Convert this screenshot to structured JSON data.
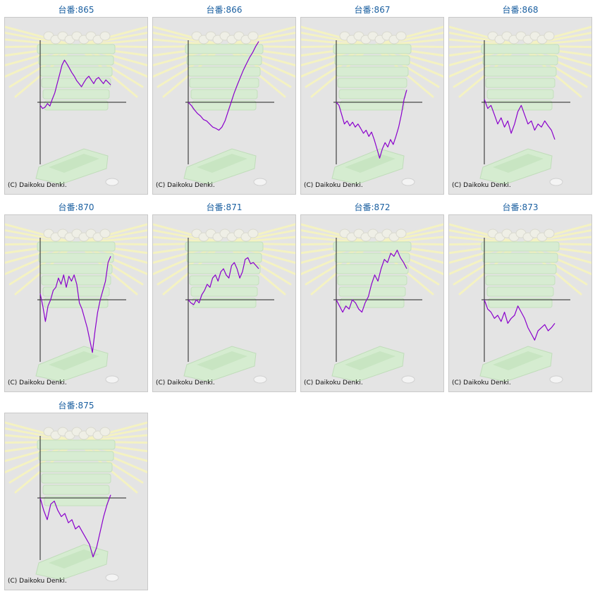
{
  "credit": "(C) Daikoku Denki.",
  "colors": {
    "title": "#1a5fa0",
    "line": "#8a00cc",
    "axis": "#222222",
    "background": "#e4e4e4"
  },
  "chart_data": [
    {
      "type": "line",
      "title": "台番:865",
      "ylim": [
        -1,
        1
      ],
      "y": [
        -0.05,
        -0.1,
        -0.08,
        -0.02,
        -0.06,
        0.05,
        0.15,
        0.3,
        0.45,
        0.6,
        0.68,
        0.62,
        0.55,
        0.48,
        0.42,
        0.35,
        0.3,
        0.25,
        0.32,
        0.38,
        0.42,
        0.36,
        0.3,
        0.37,
        0.4,
        0.35,
        0.3,
        0.36,
        0.32,
        0.28
      ]
    },
    {
      "type": "line",
      "title": "台番:866",
      "ylim": [
        -1,
        1
      ],
      "y": [
        0.0,
        -0.05,
        -0.12,
        -0.18,
        -0.22,
        -0.28,
        -0.3,
        -0.35,
        -0.4,
        -0.42,
        -0.45,
        -0.4,
        -0.3,
        -0.15,
        0.0,
        0.15,
        0.28,
        0.4,
        0.52,
        0.62,
        0.72,
        0.8,
        0.9,
        0.98
      ]
    },
    {
      "type": "line",
      "title": "台番:867",
      "ylim": [
        -1,
        1
      ],
      "y": [
        0.0,
        -0.05,
        -0.2,
        -0.35,
        -0.3,
        -0.38,
        -0.32,
        -0.4,
        -0.35,
        -0.42,
        -0.5,
        -0.45,
        -0.55,
        -0.48,
        -0.6,
        -0.75,
        -0.9,
        -0.75,
        -0.65,
        -0.72,
        -0.6,
        -0.68,
        -0.55,
        -0.4,
        -0.2,
        0.05,
        0.2
      ]
    },
    {
      "type": "line",
      "title": "台番:868",
      "ylim": [
        -1,
        1
      ],
      "y": [
        0.05,
        -0.1,
        -0.05,
        -0.2,
        -0.35,
        -0.25,
        -0.4,
        -0.3,
        -0.5,
        -0.35,
        -0.15,
        -0.05,
        -0.2,
        -0.35,
        -0.3,
        -0.45,
        -0.35,
        -0.4,
        -0.3,
        -0.38,
        -0.45,
        -0.6
      ]
    },
    {
      "type": "line",
      "title": "台番:870",
      "ylim": [
        -1,
        1
      ],
      "y": [
        0.1,
        -0.1,
        -0.35,
        -0.1,
        0.0,
        0.15,
        0.2,
        0.35,
        0.25,
        0.4,
        0.2,
        0.38,
        0.3,
        0.4,
        0.25,
        -0.05,
        -0.15,
        -0.3,
        -0.45,
        -0.65,
        -0.85,
        -0.5,
        -0.2,
        0.0,
        0.15,
        0.3,
        0.6,
        0.7
      ]
    },
    {
      "type": "line",
      "title": "台番:871",
      "ylim": [
        -1,
        1
      ],
      "y": [
        0.0,
        -0.05,
        -0.08,
        0.0,
        -0.05,
        0.08,
        0.15,
        0.25,
        0.2,
        0.35,
        0.4,
        0.3,
        0.45,
        0.5,
        0.4,
        0.35,
        0.55,
        0.6,
        0.5,
        0.35,
        0.45,
        0.65,
        0.68,
        0.58,
        0.6,
        0.55,
        0.5
      ]
    },
    {
      "type": "line",
      "title": "台番:872",
      "ylim": [
        -1,
        1
      ],
      "y": [
        0.0,
        -0.1,
        -0.2,
        -0.1,
        -0.15,
        0.0,
        -0.05,
        -0.15,
        -0.2,
        -0.05,
        0.05,
        0.25,
        0.4,
        0.3,
        0.5,
        0.65,
        0.6,
        0.75,
        0.7,
        0.8,
        0.68,
        0.6,
        0.5
      ]
    },
    {
      "type": "line",
      "title": "台番:873",
      "ylim": [
        -1,
        1
      ],
      "y": [
        0.0,
        -0.15,
        -0.2,
        -0.3,
        -0.25,
        -0.35,
        -0.2,
        -0.38,
        -0.3,
        -0.25,
        -0.1,
        -0.2,
        -0.3,
        -0.45,
        -0.55,
        -0.65,
        -0.5,
        -0.45,
        -0.4,
        -0.5,
        -0.45,
        -0.38
      ]
    },
    {
      "type": "line",
      "title": "台番:875",
      "ylim": [
        -1,
        1
      ],
      "y": [
        0.0,
        -0.2,
        -0.35,
        -0.1,
        -0.05,
        -0.2,
        -0.3,
        -0.25,
        -0.4,
        -0.35,
        -0.5,
        -0.45,
        -0.55,
        -0.65,
        -0.75,
        -0.95,
        -0.8,
        -0.55,
        -0.3,
        -0.1,
        0.05
      ]
    }
  ]
}
